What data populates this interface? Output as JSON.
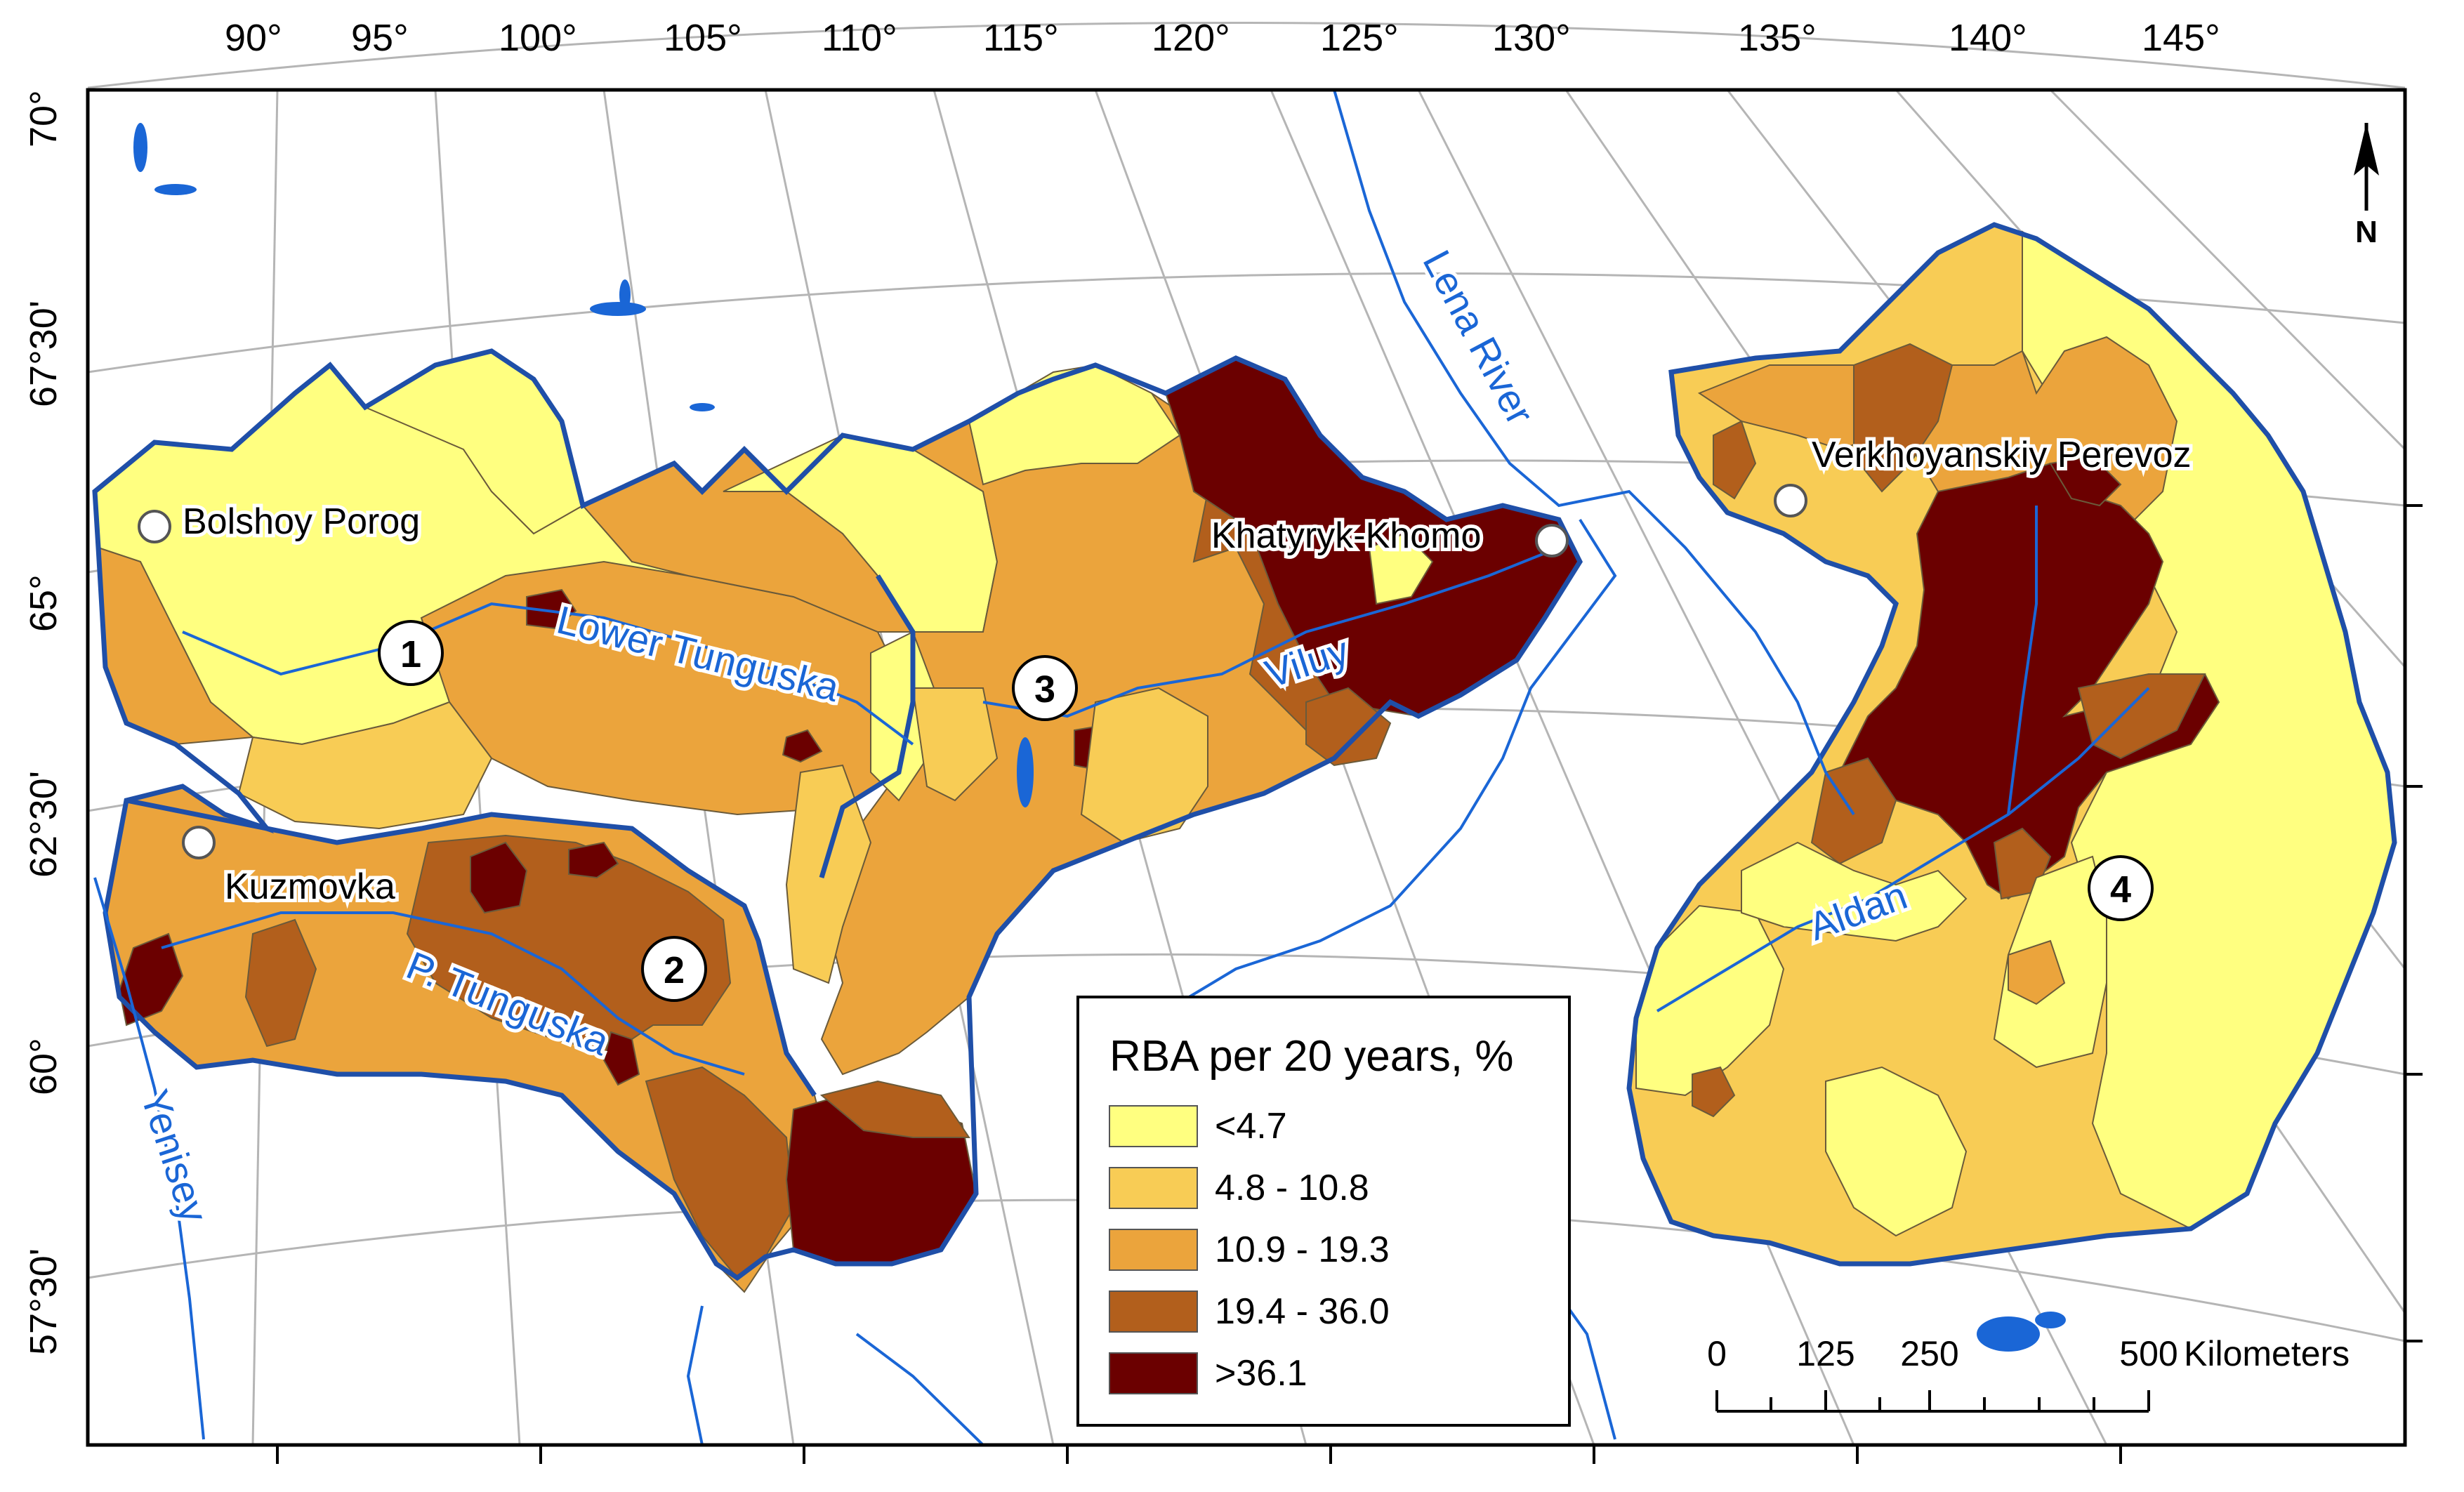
{
  "map": {
    "top_longitudes": [
      "90°",
      "95°",
      "100°",
      "105°",
      "110°",
      "115°",
      "120°",
      "125°",
      "130°",
      "135°",
      "140°",
      "145°"
    ],
    "left_latitudes": [
      "70°",
      "67°30'",
      "65°",
      "62°30'",
      "60°",
      "57°30'"
    ],
    "rivers": {
      "lower_tunguska": "Lower Tunguska",
      "p_tunguska": "P. Tunguska",
      "yenisey": "Yenisey",
      "lena": "Lena River",
      "viluy": "Viluy",
      "aldan": "Aldan"
    },
    "stations": {
      "bolshoy_porog": "Bolshoy Porog",
      "kuzmovka": "Kuzmovka",
      "khatyryk_khomo": "Khatyryk-Khomo",
      "verkhoyanskiy_perevoz": "Verkhoyanskiy Perevoz"
    },
    "region_numbers": [
      "1",
      "2",
      "3",
      "4"
    ],
    "north_arrow_label": "N"
  },
  "legend": {
    "title": "RBA per 20 years, %",
    "classes": [
      {
        "label": "<4.7",
        "color": "#ffff80"
      },
      {
        "label": "4.8 - 10.8",
        "color": "#f8cc55"
      },
      {
        "label": "10.9 - 19.3",
        "color": "#eba43c"
      },
      {
        "label": "19.4 - 36.0",
        "color": "#b25f1c"
      },
      {
        "label": ">36.1",
        "color": "#6b0000"
      }
    ]
  },
  "scale_bar": {
    "ticks": [
      "0",
      "125",
      "250",
      "500"
    ],
    "unit": "Kilometers"
  },
  "colors": {
    "boundary": "#1f4fa8",
    "water": "#1a66d6",
    "grid": "#b0b0b0"
  }
}
